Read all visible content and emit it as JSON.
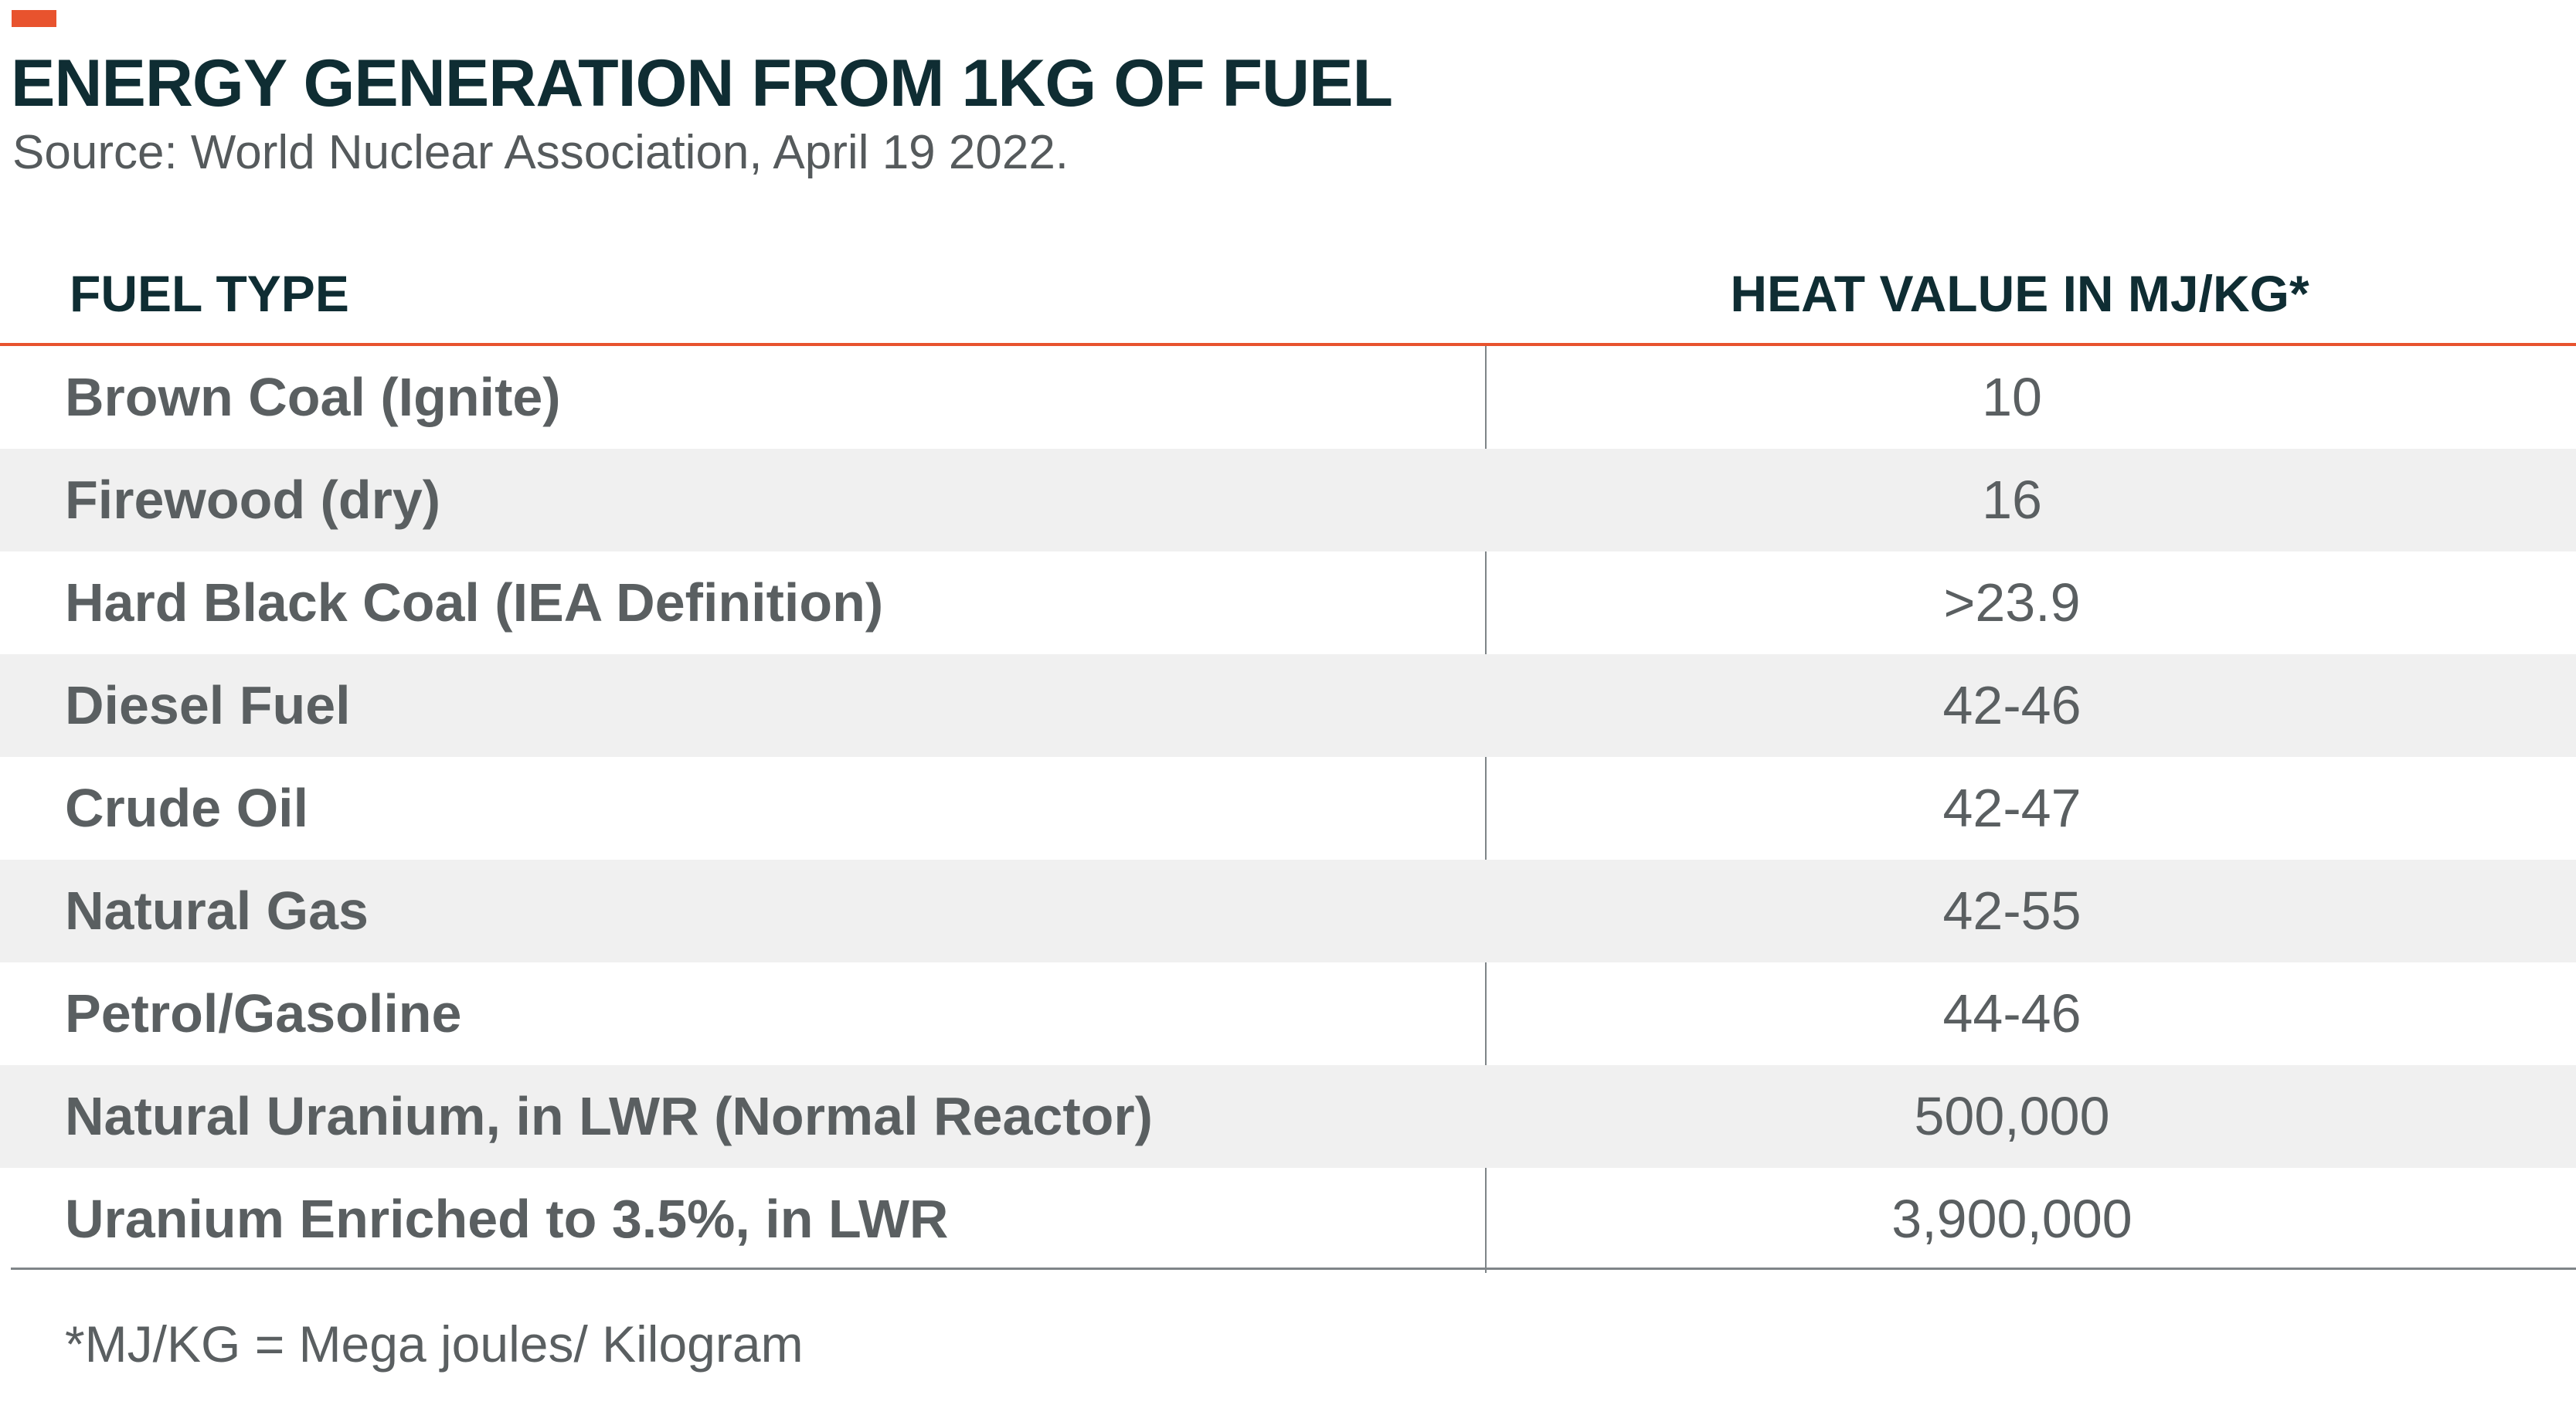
{
  "colors": {
    "accent": "#e8532e",
    "title": "#0f2d33",
    "body_text": "#5a5f61",
    "row_shade": "#f0f0f0",
    "divider": "#7f8588"
  },
  "header": {
    "title": "ENERGY GENERATION FROM 1KG OF FUEL",
    "source": "Source: World Nuclear Association, April 19 2022."
  },
  "chart_data": {
    "type": "table",
    "title": "ENERGY GENERATION FROM 1KG OF FUEL",
    "columns": [
      "FUEL TYPE",
      "HEAT VALUE IN MJ/KG*"
    ],
    "rows": [
      {
        "fuel": "Brown Coal (Ignite)",
        "value": "10"
      },
      {
        "fuel": "Firewood (dry)",
        "value": "16"
      },
      {
        "fuel": "Hard Black Coal (IEA Definition)",
        "value": ">23.9"
      },
      {
        "fuel": "Diesel Fuel",
        "value": "42-46"
      },
      {
        "fuel": "Crude Oil",
        "value": "42-47"
      },
      {
        "fuel": "Natural Gas",
        "value": "42-55"
      },
      {
        "fuel": "Petrol/Gasoline",
        "value": "44-46"
      },
      {
        "fuel": "Natural Uranium, in LWR (Normal Reactor)",
        "value": "500,000"
      },
      {
        "fuel": "Uranium Enriched to 3.5%, in LWR",
        "value": "3,900,000"
      }
    ],
    "shaded_rows": [
      1,
      3,
      5,
      7
    ]
  },
  "footnote": "*MJ/KG = Mega joules/ Kilogram"
}
